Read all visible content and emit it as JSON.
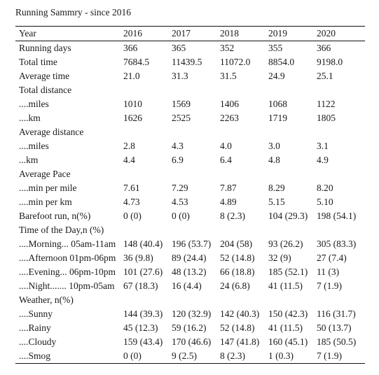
{
  "caption": "Running Sammry - since 2016",
  "header": {
    "label": "Year",
    "years": [
      "2016",
      "2017",
      "2018",
      "2019",
      "2020"
    ]
  },
  "rows": [
    {
      "label": "Running days",
      "values": [
        "366",
        "365",
        "352",
        "355",
        "366"
      ]
    },
    {
      "label": "Total time",
      "values": [
        "7684.5",
        "11439.5",
        "11072.0",
        "8854.0",
        "9198.0"
      ]
    },
    {
      "label": "Average time",
      "values": [
        "21.0",
        "31.3",
        "31.5",
        "24.9",
        "25.1"
      ]
    },
    {
      "label": "Total distance",
      "values": [
        "",
        "",
        "",
        "",
        ""
      ]
    },
    {
      "label": "....miles",
      "values": [
        "1010",
        "1569",
        "1406",
        "1068",
        "1122"
      ]
    },
    {
      "label": "....km",
      "values": [
        "1626",
        "2525",
        "2263",
        "1719",
        "1805"
      ]
    },
    {
      "label": "Average distance",
      "values": [
        "",
        "",
        "",
        "",
        ""
      ]
    },
    {
      "label": "....miles",
      "values": [
        "2.8",
        "4.3",
        "4.0",
        "3.0",
        "3.1"
      ]
    },
    {
      "label": "...km",
      "values": [
        "4.4",
        "6.9",
        "6.4",
        "4.8",
        "4.9"
      ]
    },
    {
      "label": "Average Pace",
      "values": [
        "",
        "",
        "",
        "",
        ""
      ]
    },
    {
      "label": "....min per mile",
      "values": [
        "7.61",
        "7.29",
        "7.87",
        "8.29",
        "8.20"
      ]
    },
    {
      "label": "....min per km",
      "values": [
        "4.73",
        "4.53",
        "4.89",
        "5.15",
        "5.10"
      ]
    },
    {
      "label": "Barefoot run, n(%)",
      "values": [
        "0 (0)",
        "0 (0)",
        "8 (2.3)",
        "104 (29.3)",
        "198 (54.1)"
      ]
    },
    {
      "label": "Time of the Day,n (%)",
      "values": [
        "",
        "",
        "",
        "",
        ""
      ]
    },
    {
      "label": "....Morning... 05am-11am",
      "values": [
        "148 (40.4)",
        "196 (53.7)",
        "204 (58)",
        "93 (26.2)",
        "305 (83.3)"
      ]
    },
    {
      "label": "....Afternoon 01pm-06pm",
      "values": [
        "36 (9.8)",
        "89 (24.4)",
        "52 (14.8)",
        "32 (9)",
        "27 (7.4)"
      ]
    },
    {
      "label": "....Evening... 06pm-10pm",
      "values": [
        "101 (27.6)",
        "48 (13.2)",
        "66 (18.8)",
        "185 (52.1)",
        "11 (3)"
      ]
    },
    {
      "label": "....Night....... 10pm-05am",
      "values": [
        "67 (18.3)",
        "16 (4.4)",
        "24 (6.8)",
        "41 (11.5)",
        "7 (1.9)"
      ]
    },
    {
      "label": "Weather, n(%)",
      "values": [
        "",
        "",
        "",
        "",
        ""
      ]
    },
    {
      "label": "....Sunny",
      "values": [
        "144 (39.3)",
        "120 (32.9)",
        "142 (40.3)",
        "150 (42.3)",
        "116 (31.7)"
      ]
    },
    {
      "label": "....Rainy",
      "values": [
        "45 (12.3)",
        "59 (16.2)",
        "52 (14.8)",
        "41 (11.5)",
        "50 (13.7)"
      ]
    },
    {
      "label": "....Cloudy",
      "values": [
        "159 (43.4)",
        "170 (46.6)",
        "147 (41.8)",
        "160 (45.1)",
        "185 (50.5)"
      ]
    },
    {
      "label": "....Smog",
      "values": [
        "0 (0)",
        "9 (2.5)",
        "8 (2.3)",
        "1 (0.3)",
        "7 (1.9)"
      ]
    }
  ]
}
